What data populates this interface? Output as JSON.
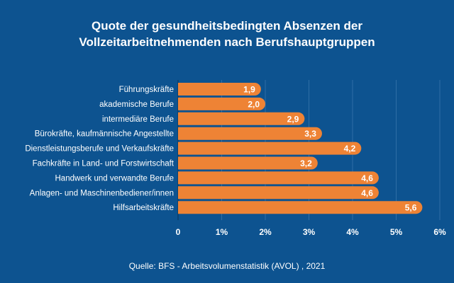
{
  "chart_data": {
    "type": "bar",
    "orientation": "horizontal",
    "title_lines": [
      "Quote der gesundheitsbedingten Absenzen der",
      "Vollzeitarbeitnehmenden nach Berufshauptgruppen"
    ],
    "categories": [
      "Führungskräfte",
      "akademische Berufe",
      "intermediäre Berufe",
      "Bürokräfte, kaufmännische Angestellte",
      "Dienstleistungsberufe und Verkaufskräfte",
      "Fachkräfte in Land- und Forstwirtschaft",
      "Handwerk und verwandte Berufe",
      "Anlagen- und Maschinenbediener/innen",
      "Hilfsarbeitskräfte"
    ],
    "values": [
      1.9,
      2.0,
      2.9,
      3.3,
      4.2,
      3.2,
      4.6,
      4.6,
      5.6
    ],
    "data_labels": [
      "1,9",
      "2,0",
      "2,9",
      "3,3",
      "4,2",
      "3,2",
      "4,6",
      "4,6",
      "5,6"
    ],
    "xlim": [
      0,
      6
    ],
    "x_ticks": [
      0,
      1,
      2,
      3,
      4,
      5,
      6
    ],
    "x_tick_labels": [
      "0",
      "1%",
      "2%",
      "3%",
      "4%",
      "5%",
      "6%"
    ],
    "grid": true,
    "source": "Quelle: BFS - Arbeitsvolumenstatistik (AVOL) , 2021",
    "colors": {
      "background": "#0d5390",
      "bar": "#ee8335",
      "grid": "#2f6ea6",
      "text": "#ffffff"
    }
  }
}
